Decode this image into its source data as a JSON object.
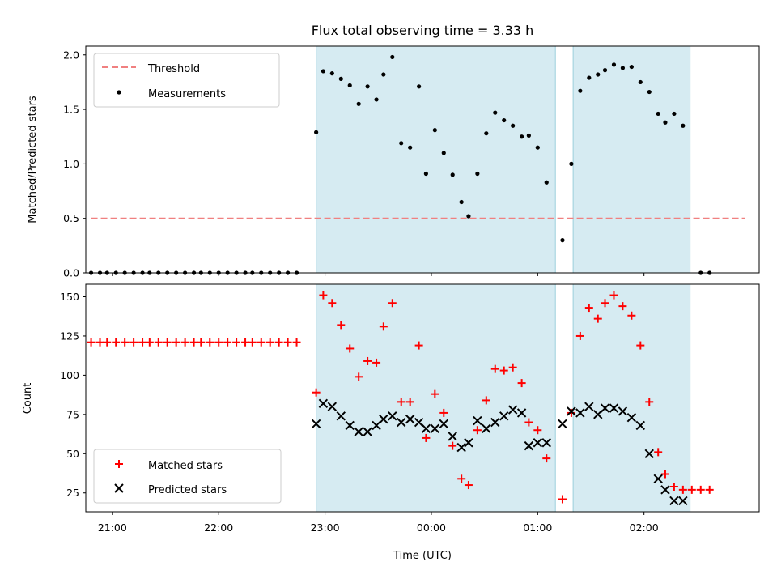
{
  "chart_data": [
    {
      "type": "scatter",
      "title": "Flux total observing time = 3.33 h",
      "xlabel": "",
      "ylabel": "Matched/Predicted stars",
      "xlim": [
        "20:45",
        "03:05"
      ],
      "ylim": [
        0,
        2.08
      ],
      "yticks": [
        "0.0",
        "0.5",
        "1.0",
        "1.5",
        "2.0"
      ],
      "yticks_values": [
        0,
        0.5,
        1.0,
        1.5,
        2.0
      ],
      "shaded_intervals": [
        [
          "22:55",
          "01:10"
        ],
        [
          "01:20",
          "02:26"
        ]
      ],
      "legend": {
        "position": "top-left",
        "entries": [
          "Threshold",
          "Measurements"
        ]
      },
      "threshold": {
        "name": "Threshold",
        "value": 0.5,
        "x_start": "20:48",
        "x_end": "02:57",
        "color": "#f08080"
      },
      "series": [
        {
          "name": "Measurements",
          "color": "#000000",
          "points": [
            [
              "20:48",
              0.0
            ],
            [
              "20:53",
              0.0
            ],
            [
              "20:57",
              0.0
            ],
            [
              "21:02",
              0.0
            ],
            [
              "21:07",
              0.0
            ],
            [
              "21:12",
              0.0
            ],
            [
              "21:17",
              0.0
            ],
            [
              "21:21",
              0.0
            ],
            [
              "21:26",
              0.0
            ],
            [
              "21:31",
              0.0
            ],
            [
              "21:36",
              0.0
            ],
            [
              "21:41",
              0.0
            ],
            [
              "21:46",
              0.0
            ],
            [
              "21:50",
              0.0
            ],
            [
              "21:55",
              0.0
            ],
            [
              "22:00",
              0.0
            ],
            [
              "22:05",
              0.0
            ],
            [
              "22:10",
              0.0
            ],
            [
              "22:15",
              0.0
            ],
            [
              "22:19",
              0.0
            ],
            [
              "22:24",
              0.0
            ],
            [
              "22:29",
              0.0
            ],
            [
              "22:34",
              0.0
            ],
            [
              "22:39",
              0.0
            ],
            [
              "22:44",
              0.0
            ],
            [
              "22:55",
              1.29
            ],
            [
              "22:59",
              1.85
            ],
            [
              "23:04",
              1.83
            ],
            [
              "23:09",
              1.78
            ],
            [
              "23:14",
              1.72
            ],
            [
              "23:19",
              1.55
            ],
            [
              "23:24",
              1.71
            ],
            [
              "23:29",
              1.59
            ],
            [
              "23:33",
              1.82
            ],
            [
              "23:38",
              1.98
            ],
            [
              "23:43",
              1.19
            ],
            [
              "23:48",
              1.15
            ],
            [
              "23:53",
              1.71
            ],
            [
              "23:57",
              0.91
            ],
            [
              "00:02",
              1.31
            ],
            [
              "00:07",
              1.1
            ],
            [
              "00:12",
              0.9
            ],
            [
              "00:17",
              0.65
            ],
            [
              "00:21",
              0.52
            ],
            [
              "00:26",
              0.91
            ],
            [
              "00:31",
              1.28
            ],
            [
              "00:36",
              1.47
            ],
            [
              "00:41",
              1.4
            ],
            [
              "00:46",
              1.35
            ],
            [
              "00:51",
              1.25
            ],
            [
              "00:55",
              1.26
            ],
            [
              "01:00",
              1.15
            ],
            [
              "01:05",
              0.83
            ],
            [
              "01:14",
              0.3
            ],
            [
              "01:19",
              1.0
            ],
            [
              "01:24",
              1.67
            ],
            [
              "01:29",
              1.79
            ],
            [
              "01:34",
              1.82
            ],
            [
              "01:38",
              1.86
            ],
            [
              "01:43",
              1.91
            ],
            [
              "01:48",
              1.88
            ],
            [
              "01:53",
              1.89
            ],
            [
              "01:58",
              1.75
            ],
            [
              "02:03",
              1.66
            ],
            [
              "02:08",
              1.46
            ],
            [
              "02:12",
              1.38
            ],
            [
              "02:17",
              1.46
            ],
            [
              "02:22",
              1.35
            ],
            [
              "02:32",
              0.0
            ],
            [
              "02:37",
              0.0
            ]
          ]
        }
      ]
    },
    {
      "type": "scatter",
      "title": "",
      "xlabel": "Time (UTC)",
      "ylabel": "Count",
      "xlim": [
        "20:45",
        "03:05"
      ],
      "ylim": [
        13,
        158
      ],
      "xticks": [
        "21:00",
        "22:00",
        "23:00",
        "00:00",
        "01:00",
        "02:00"
      ],
      "yticks": [
        "25",
        "50",
        "75",
        "100",
        "125",
        "150"
      ],
      "yticks_values": [
        25,
        50,
        75,
        100,
        125,
        150
      ],
      "shaded_intervals": [
        [
          "22:55",
          "01:10"
        ],
        [
          "01:20",
          "02:26"
        ]
      ],
      "legend": {
        "position": "bottom-left",
        "entries": [
          "Matched stars",
          "Predicted stars"
        ]
      },
      "series": [
        {
          "name": "Matched stars",
          "marker": "+",
          "color": "#ff0000",
          "points": [
            [
              "20:48",
              121
            ],
            [
              "20:53",
              121
            ],
            [
              "20:57",
              121
            ],
            [
              "21:02",
              121
            ],
            [
              "21:07",
              121
            ],
            [
              "21:12",
              121
            ],
            [
              "21:17",
              121
            ],
            [
              "21:21",
              121
            ],
            [
              "21:26",
              121
            ],
            [
              "21:31",
              121
            ],
            [
              "21:36",
              121
            ],
            [
              "21:41",
              121
            ],
            [
              "21:46",
              121
            ],
            [
              "21:50",
              121
            ],
            [
              "21:55",
              121
            ],
            [
              "22:00",
              121
            ],
            [
              "22:05",
              121
            ],
            [
              "22:10",
              121
            ],
            [
              "22:15",
              121
            ],
            [
              "22:19",
              121
            ],
            [
              "22:24",
              121
            ],
            [
              "22:29",
              121
            ],
            [
              "22:34",
              121
            ],
            [
              "22:39",
              121
            ],
            [
              "22:44",
              121
            ],
            [
              "22:55",
              89
            ],
            [
              "22:59",
              151
            ],
            [
              "23:04",
              146
            ],
            [
              "23:09",
              132
            ],
            [
              "23:14",
              117
            ],
            [
              "23:19",
              99
            ],
            [
              "23:24",
              109
            ],
            [
              "23:29",
              108
            ],
            [
              "23:33",
              131
            ],
            [
              "23:38",
              146
            ],
            [
              "23:43",
              83
            ],
            [
              "23:48",
              83
            ],
            [
              "23:53",
              119
            ],
            [
              "23:57",
              60
            ],
            [
              "00:02",
              88
            ],
            [
              "00:07",
              76
            ],
            [
              "00:12",
              55
            ],
            [
              "00:17",
              34
            ],
            [
              "00:21",
              30
            ],
            [
              "00:26",
              65
            ],
            [
              "00:31",
              84
            ],
            [
              "00:36",
              104
            ],
            [
              "00:41",
              103
            ],
            [
              "00:46",
              105
            ],
            [
              "00:51",
              95
            ],
            [
              "00:55",
              70
            ],
            [
              "01:00",
              65
            ],
            [
              "01:05",
              47
            ],
            [
              "01:14",
              21
            ],
            [
              "01:19",
              76
            ],
            [
              "01:24",
              125
            ],
            [
              "01:29",
              143
            ],
            [
              "01:34",
              136
            ],
            [
              "01:38",
              146
            ],
            [
              "01:43",
              151
            ],
            [
              "01:48",
              144
            ],
            [
              "01:53",
              138
            ],
            [
              "01:58",
              119
            ],
            [
              "02:03",
              83
            ],
            [
              "02:08",
              51
            ],
            [
              "02:12",
              37
            ],
            [
              "02:17",
              29
            ],
            [
              "02:22",
              27
            ],
            [
              "02:27",
              27
            ],
            [
              "02:32",
              27
            ],
            [
              "02:37",
              27
            ]
          ]
        },
        {
          "name": "Predicted stars",
          "marker": "x",
          "color": "#000000",
          "points": [
            [
              "22:55",
              69
            ],
            [
              "22:59",
              82
            ],
            [
              "23:04",
              80
            ],
            [
              "23:09",
              74
            ],
            [
              "23:14",
              68
            ],
            [
              "23:19",
              64
            ],
            [
              "23:24",
              64
            ],
            [
              "23:29",
              68
            ],
            [
              "23:33",
              72
            ],
            [
              "23:38",
              74
            ],
            [
              "23:43",
              70
            ],
            [
              "23:48",
              72
            ],
            [
              "23:53",
              70
            ],
            [
              "23:57",
              66
            ],
            [
              "00:02",
              66
            ],
            [
              "00:07",
              69
            ],
            [
              "00:12",
              61
            ],
            [
              "00:17",
              54
            ],
            [
              "00:21",
              57
            ],
            [
              "00:26",
              71
            ],
            [
              "00:31",
              66
            ],
            [
              "00:36",
              70
            ],
            [
              "00:41",
              74
            ],
            [
              "00:46",
              78
            ],
            [
              "00:51",
              76
            ],
            [
              "00:55",
              55
            ],
            [
              "01:00",
              57
            ],
            [
              "01:05",
              57
            ],
            [
              "01:14",
              69
            ],
            [
              "01:19",
              77
            ],
            [
              "01:24",
              76
            ],
            [
              "01:29",
              80
            ],
            [
              "01:34",
              75
            ],
            [
              "01:38",
              79
            ],
            [
              "01:43",
              79
            ],
            [
              "01:48",
              77
            ],
            [
              "01:53",
              73
            ],
            [
              "01:58",
              68
            ],
            [
              "02:03",
              50
            ],
            [
              "02:08",
              34
            ],
            [
              "02:12",
              27
            ],
            [
              "02:17",
              20
            ],
            [
              "02:22",
              20
            ]
          ]
        }
      ]
    }
  ]
}
